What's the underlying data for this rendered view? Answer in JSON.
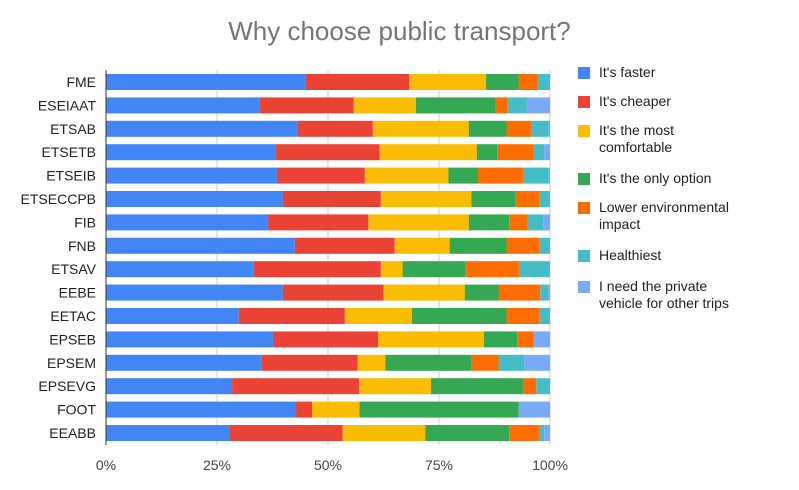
{
  "chart_data": {
    "type": "bar",
    "stacked": "percent",
    "orientation": "horizontal",
    "title": "Why choose public transport?",
    "xlabel": "",
    "ylabel": "",
    "xlim": [
      0,
      100
    ],
    "x_ticks": [
      "0%",
      "25%",
      "50%",
      "75%",
      "100%"
    ],
    "legend_position": "right",
    "categories": [
      "FME",
      "ESEIAAT",
      "ETSAB",
      "ETSETB",
      "ETSEIB",
      "ETSECCPB",
      "FIB",
      "FNB",
      "ETSAV",
      "EEBE",
      "EETAC",
      "EPSEB",
      "EPSEM",
      "EPSEVG",
      "FOOT",
      "EEABB"
    ],
    "series": [
      {
        "name": "It's faster",
        "color": "#4285F4",
        "values": [
          44.9,
          34.6,
          43.1,
          38.3,
          38.5,
          39.8,
          36.4,
          42.5,
          33.3,
          39.8,
          29.9,
          37.6,
          35.1,
          28.4,
          42.8,
          27.8
        ]
      },
      {
        "name": "It's cheaper",
        "color": "#EA4335",
        "values": [
          23.4,
          21.2,
          17.0,
          23.3,
          19.8,
          22.1,
          22.7,
          22.5,
          28.6,
          22.7,
          23.9,
          23.7,
          21.6,
          28.6,
          3.6,
          25.5
        ]
      },
      {
        "name": "It's the most comfortable",
        "color": "#FBBC04",
        "values": [
          17.3,
          14.0,
          21.6,
          21.9,
          18.8,
          20.4,
          22.6,
          12.4,
          4.9,
          18.3,
          15.1,
          23.8,
          6.2,
          16.2,
          10.7,
          18.6
        ]
      },
      {
        "name": "It's the only option",
        "color": "#34A853",
        "values": [
          7.3,
          18.0,
          8.5,
          4.6,
          6.7,
          10.0,
          9.1,
          12.8,
          14.2,
          7.6,
          21.3,
          7.5,
          19.4,
          20.7,
          35.8,
          18.9
        ]
      },
      {
        "name": "Lower environmental impact",
        "color": "#FF6D01",
        "values": [
          4.3,
          2.7,
          5.5,
          8.2,
          10.1,
          5.3,
          4.2,
          7.4,
          12.0,
          9.4,
          7.4,
          3.7,
          6.1,
          3.0,
          0,
          6.7
        ]
      },
      {
        "name": "Healthiest",
        "color": "#46BDC6",
        "values": [
          2.8,
          4.3,
          4.0,
          2.4,
          5.8,
          2.4,
          3.5,
          2.4,
          7.0,
          1.8,
          2.4,
          0,
          5.8,
          3.1,
          0,
          1.2
        ]
      },
      {
        "name": "I need the private vehicle for other trips",
        "color": "#7BAAF7",
        "values": [
          0,
          5.2,
          0.3,
          1.3,
          0.3,
          0,
          1.5,
          0,
          0,
          0.4,
          0,
          3.7,
          5.8,
          0,
          7.1,
          1.3
        ]
      }
    ]
  },
  "legend_lines": [
    [
      "It's faster"
    ],
    [
      "It's cheaper"
    ],
    [
      "It's the most",
      "comfortable"
    ],
    [
      "It's the only option"
    ],
    [
      "Lower environmental",
      "impact"
    ],
    [
      "Healthiest"
    ],
    [
      "I need the private",
      "vehicle for other trips"
    ]
  ]
}
